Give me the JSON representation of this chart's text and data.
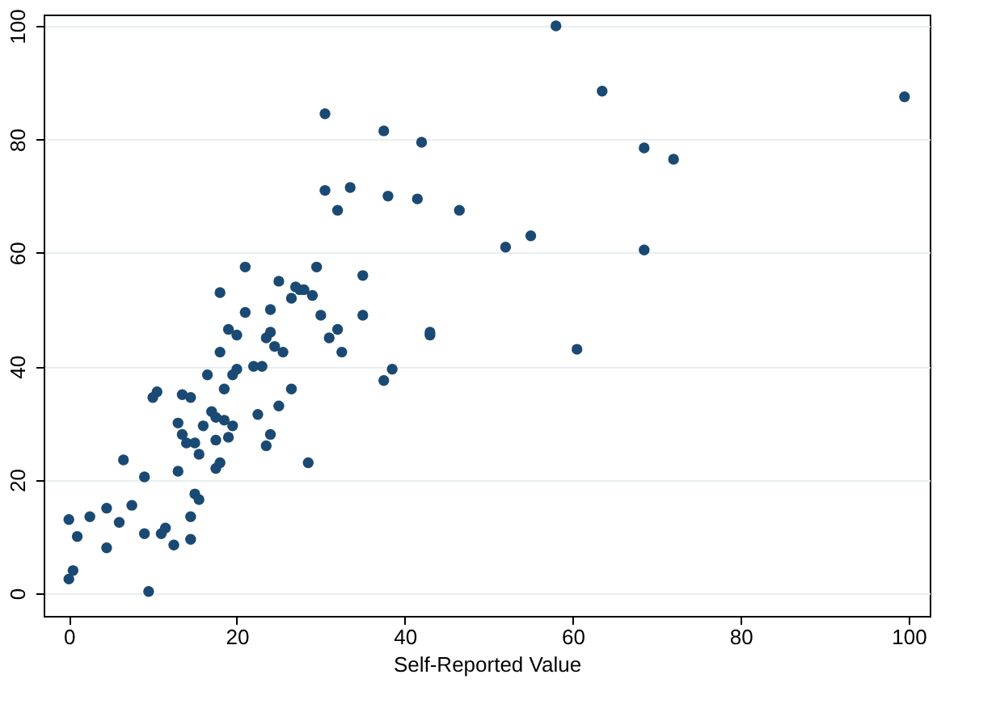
{
  "chart_data": {
    "type": "scatter",
    "xlabel": "Self-Reported Value",
    "xlim": [
      -3,
      102.5
    ],
    "ylim": [
      -4,
      102
    ],
    "xticks": [
      0,
      20,
      40,
      60,
      80,
      100
    ],
    "yticks": [
      0,
      20,
      40,
      60,
      80,
      100
    ],
    "grid": "y",
    "marker": "circle",
    "series": [
      {
        "color": "#1a4a73",
        "x": [
          0,
          0.5,
          0,
          1,
          2.5,
          4.5,
          4.5,
          6,
          6.5,
          7.5,
          9,
          9,
          9.5,
          10,
          10.5,
          11,
          11.5,
          12.5,
          13,
          13,
          13.5,
          13.5,
          14,
          14.5,
          14.5,
          14.5,
          15,
          15,
          15.5,
          15.5,
          16,
          16.5,
          17,
          17.5,
          17.5,
          17.5,
          18,
          18,
          18,
          18.5,
          18.5,
          19,
          19,
          19.5,
          19.5,
          20,
          20,
          21,
          21,
          22,
          22.5,
          23,
          23.5,
          23.5,
          24,
          24,
          24,
          24.5,
          25,
          25,
          25.5,
          26.5,
          26.5,
          27,
          27.5,
          28,
          28.5,
          29,
          29.5,
          30,
          30.5,
          30.5,
          31,
          32,
          32,
          32.5,
          33.5,
          35,
          35,
          37.5,
          37.5,
          38,
          38.5,
          41.5,
          42,
          43,
          43,
          46.5,
          52,
          55,
          58,
          60.5,
          63.5,
          68.5,
          68.5,
          72,
          99.5
        ],
        "values": [
          2.5,
          4,
          13,
          10,
          13.5,
          15,
          8,
          12.5,
          23.5,
          15.5,
          10.5,
          20.5,
          0.3,
          34.5,
          35.5,
          10.5,
          11.5,
          8.5,
          21.5,
          30,
          28,
          35,
          26.5,
          9.5,
          13.5,
          34.5,
          17.5,
          26.5,
          24.5,
          16.5,
          29.5,
          38.5,
          32,
          22,
          27,
          31,
          53,
          23,
          42.5,
          30.5,
          36,
          46.5,
          27.5,
          29.5,
          38.5,
          45.5,
          39.5,
          49.5,
          57.5,
          40,
          31.5,
          40,
          45,
          26,
          28,
          46,
          50,
          43.5,
          55,
          33,
          42.5,
          52,
          36,
          54,
          53.5,
          53.5,
          23,
          52.5,
          57.5,
          49,
          84.5,
          71,
          45,
          46.5,
          67.5,
          42.5,
          71.5,
          49,
          56,
          37.5,
          81.5,
          70,
          39.5,
          69.5,
          79.5,
          46,
          45.5,
          67.5,
          61,
          63,
          100,
          43,
          88.5,
          78.5,
          60.5,
          76.5,
          87.5
        ]
      }
    ]
  }
}
